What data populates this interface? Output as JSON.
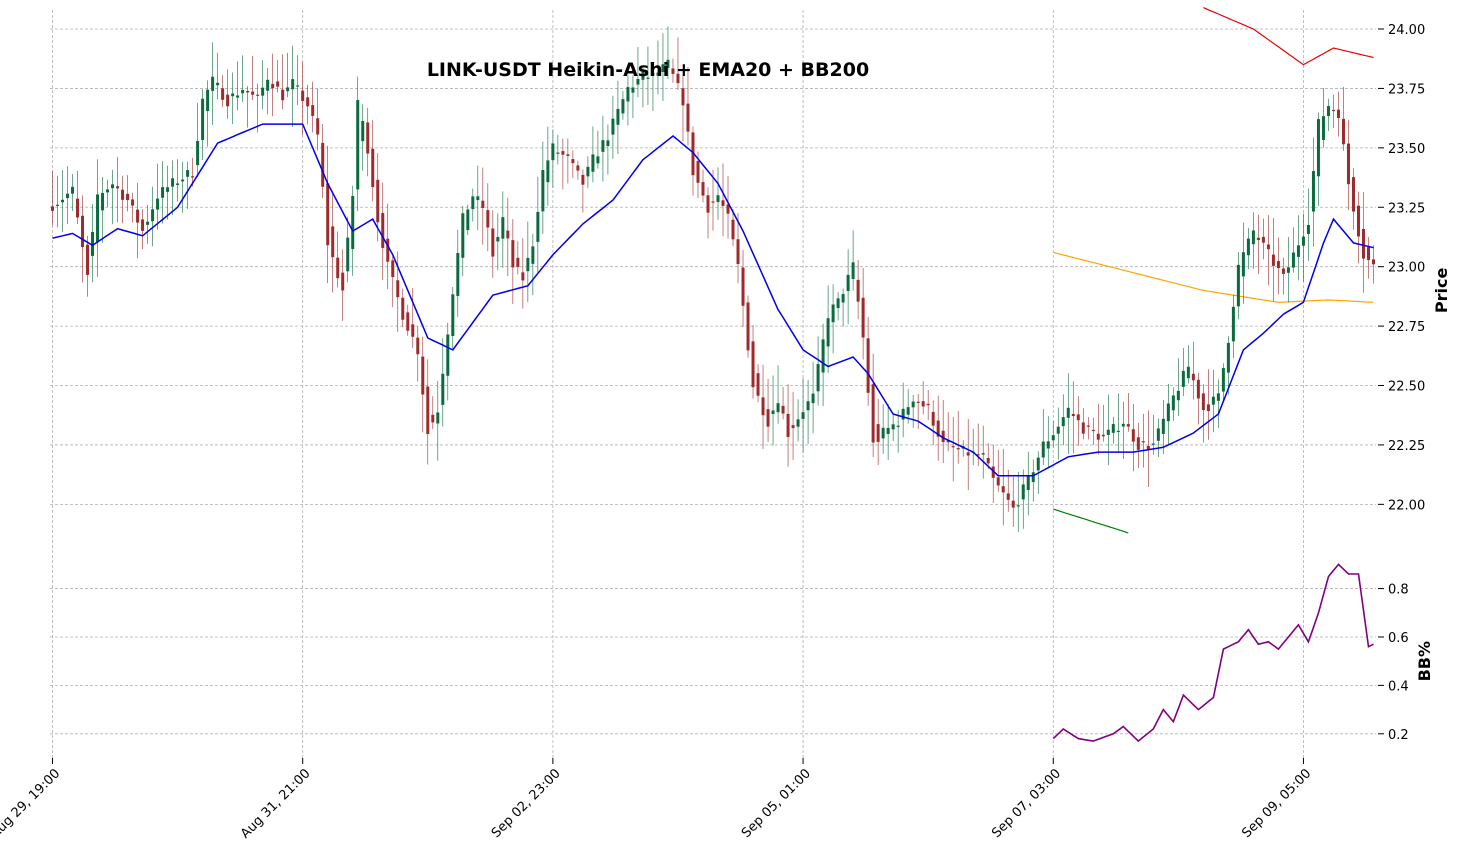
{
  "chart_data": {
    "type": "candlestick",
    "title": "LINK-USDT Heikin-Ashi + EMA20 + BB200",
    "colors": {
      "up": "#0b6b3e",
      "down": "#9e2a2b",
      "ema": "#0000ee",
      "bb_upper": "#ee0000",
      "bb_mid": "#ffa500",
      "bb_lower": "#008000",
      "bbp": "#800080"
    },
    "x_ticks": [
      "Aug 29, 19:00",
      "Aug 31, 21:00",
      "Sep 02, 23:00",
      "Sep 05, 01:00",
      "Sep 07, 03:00",
      "Sep 09, 05:00"
    ],
    "x_tick_index": [
      0,
      50,
      100,
      150,
      200,
      250
    ],
    "bar_count": 265,
    "price_panel": {
      "ylabel": "Price",
      "ylim": [
        21.85,
        24.08
      ],
      "yticks": [
        22.0,
        22.25,
        22.5,
        22.75,
        23.0,
        23.25,
        23.5,
        23.75,
        24.0
      ],
      "ytick_labels": [
        "22.00",
        "22.25",
        "22.50",
        "22.75",
        "23.00",
        "23.25",
        "23.50",
        "23.75",
        "24.00"
      ],
      "candle_close_anchors": [
        [
          0,
          23.26
        ],
        [
          4,
          23.32
        ],
        [
          7,
          22.95
        ],
        [
          9,
          23.3
        ],
        [
          12,
          23.35
        ],
        [
          15,
          23.28
        ],
        [
          18,
          23.15
        ],
        [
          21,
          23.3
        ],
        [
          24,
          23.35
        ],
        [
          28,
          23.4
        ],
        [
          30,
          23.7
        ],
        [
          32,
          23.78
        ],
        [
          35,
          23.7
        ],
        [
          38,
          23.75
        ],
        [
          41,
          23.7
        ],
        [
          43,
          23.8
        ],
        [
          46,
          23.72
        ],
        [
          48,
          23.77
        ],
        [
          51,
          23.68
        ],
        [
          53,
          23.55
        ],
        [
          55,
          23.1
        ],
        [
          58,
          22.9
        ],
        [
          60,
          23.3
        ],
        [
          61,
          23.7
        ],
        [
          63,
          23.5
        ],
        [
          65,
          23.2
        ],
        [
          67,
          23.0
        ],
        [
          70,
          22.8
        ],
        [
          73,
          22.65
        ],
        [
          75,
          22.3
        ],
        [
          77,
          22.4
        ],
        [
          80,
          22.9
        ],
        [
          82,
          23.2
        ],
        [
          84,
          23.3
        ],
        [
          86,
          23.25
        ],
        [
          88,
          23.05
        ],
        [
          90,
          23.2
        ],
        [
          92,
          23.0
        ],
        [
          94,
          22.95
        ],
        [
          96,
          23.1
        ],
        [
          98,
          23.4
        ],
        [
          100,
          23.5
        ],
        [
          103,
          23.45
        ],
        [
          106,
          23.35
        ],
        [
          108,
          23.45
        ],
        [
          111,
          23.55
        ],
        [
          113,
          23.65
        ],
        [
          115,
          23.75
        ],
        [
          118,
          23.8
        ],
        [
          120,
          23.8
        ],
        [
          123,
          23.85
        ],
        [
          126,
          23.7
        ],
        [
          128,
          23.4
        ],
        [
          131,
          23.25
        ],
        [
          133,
          23.3
        ],
        [
          135,
          23.2
        ],
        [
          137,
          23.0
        ],
        [
          140,
          22.5
        ],
        [
          143,
          22.35
        ],
        [
          145,
          22.45
        ],
        [
          147,
          22.3
        ],
        [
          150,
          22.4
        ],
        [
          152,
          22.45
        ],
        [
          155,
          22.8
        ],
        [
          157,
          22.85
        ],
        [
          160,
          23.0
        ],
        [
          162,
          22.7
        ],
        [
          164,
          22.25
        ],
        [
          166,
          22.3
        ],
        [
          169,
          22.35
        ],
        [
          172,
          22.45
        ],
        [
          175,
          22.4
        ],
        [
          178,
          22.25
        ],
        [
          182,
          22.22
        ],
        [
          186,
          22.2
        ],
        [
          188,
          22.1
        ],
        [
          192,
          21.98
        ],
        [
          195,
          22.1
        ],
        [
          198,
          22.25
        ],
        [
          200,
          22.3
        ],
        [
          203,
          22.4
        ],
        [
          206,
          22.32
        ],
        [
          210,
          22.28
        ],
        [
          214,
          22.35
        ],
        [
          217,
          22.25
        ],
        [
          220,
          22.25
        ],
        [
          224,
          22.45
        ],
        [
          227,
          22.58
        ],
        [
          230,
          22.4
        ],
        [
          233,
          22.45
        ],
        [
          235,
          22.7
        ],
        [
          237,
          23.0
        ],
        [
          240,
          23.15
        ],
        [
          243,
          23.05
        ],
        [
          246,
          22.95
        ],
        [
          249,
          23.1
        ],
        [
          251,
          23.2
        ],
        [
          253,
          23.6
        ],
        [
          255,
          23.68
        ],
        [
          257,
          23.65
        ],
        [
          259,
          23.35
        ],
        [
          262,
          23.05
        ],
        [
          264,
          23.0
        ]
      ],
      "ema20_anchors": [
        [
          0,
          23.12
        ],
        [
          4,
          23.14
        ],
        [
          8,
          23.09
        ],
        [
          13,
          23.16
        ],
        [
          18,
          23.13
        ],
        [
          25,
          23.25
        ],
        [
          33,
          23.52
        ],
        [
          42,
          23.6
        ],
        [
          50,
          23.6
        ],
        [
          55,
          23.35
        ],
        [
          60,
          23.15
        ],
        [
          64,
          23.2
        ],
        [
          68,
          23.05
        ],
        [
          75,
          22.7
        ],
        [
          80,
          22.65
        ],
        [
          88,
          22.88
        ],
        [
          95,
          22.92
        ],
        [
          100,
          23.05
        ],
        [
          106,
          23.18
        ],
        [
          112,
          23.28
        ],
        [
          118,
          23.45
        ],
        [
          124,
          23.55
        ],
        [
          128,
          23.48
        ],
        [
          133,
          23.35
        ],
        [
          138,
          23.15
        ],
        [
          145,
          22.82
        ],
        [
          150,
          22.65
        ],
        [
          155,
          22.58
        ],
        [
          160,
          22.62
        ],
        [
          163,
          22.55
        ],
        [
          168,
          22.38
        ],
        [
          173,
          22.35
        ],
        [
          178,
          22.28
        ],
        [
          184,
          22.22
        ],
        [
          189,
          22.12
        ],
        [
          196,
          22.12
        ],
        [
          203,
          22.2
        ],
        [
          209,
          22.22
        ],
        [
          216,
          22.22
        ],
        [
          222,
          22.24
        ],
        [
          228,
          22.3
        ],
        [
          233,
          22.38
        ],
        [
          238,
          22.65
        ],
        [
          242,
          22.72
        ],
        [
          246,
          22.8
        ],
        [
          250,
          22.85
        ],
        [
          254,
          23.1
        ],
        [
          256,
          23.2
        ],
        [
          260,
          23.1
        ],
        [
          264,
          23.08
        ]
      ],
      "bb_upper_anchors": [
        [
          230,
          24.09
        ],
        [
          240,
          24.0
        ],
        [
          250,
          23.85
        ],
        [
          256,
          23.92
        ],
        [
          264,
          23.88
        ]
      ],
      "bb_mid_anchors": [
        [
          200,
          23.06
        ],
        [
          215,
          22.98
        ],
        [
          230,
          22.9
        ],
        [
          245,
          22.85
        ],
        [
          255,
          22.86
        ],
        [
          264,
          22.85
        ]
      ],
      "bb_lower_anchors": [
        [
          200,
          21.98
        ],
        [
          215,
          21.88
        ]
      ]
    },
    "bbp_panel": {
      "ylabel": "BB%",
      "ylim": [
        0.1,
        0.98
      ],
      "yticks": [
        0.2,
        0.4,
        0.6,
        0.8
      ],
      "ytick_labels": [
        "0.2",
        "0.4",
        "0.6",
        "0.8"
      ],
      "bbp_anchors": [
        [
          200,
          0.18
        ],
        [
          202,
          0.22
        ],
        [
          205,
          0.18
        ],
        [
          208,
          0.17
        ],
        [
          212,
          0.2
        ],
        [
          214,
          0.23
        ],
        [
          217,
          0.17
        ],
        [
          220,
          0.22
        ],
        [
          222,
          0.3
        ],
        [
          224,
          0.25
        ],
        [
          226,
          0.36
        ],
        [
          229,
          0.3
        ],
        [
          232,
          0.35
        ],
        [
          234,
          0.55
        ],
        [
          237,
          0.58
        ],
        [
          239,
          0.63
        ],
        [
          241,
          0.57
        ],
        [
          243,
          0.58
        ],
        [
          245,
          0.55
        ],
        [
          247,
          0.6
        ],
        [
          249,
          0.65
        ],
        [
          251,
          0.58
        ],
        [
          253,
          0.7
        ],
        [
          255,
          0.85
        ],
        [
          257,
          0.9
        ],
        [
          259,
          0.86
        ],
        [
          261,
          0.86
        ],
        [
          263,
          0.56
        ],
        [
          264,
          0.57
        ]
      ]
    }
  }
}
